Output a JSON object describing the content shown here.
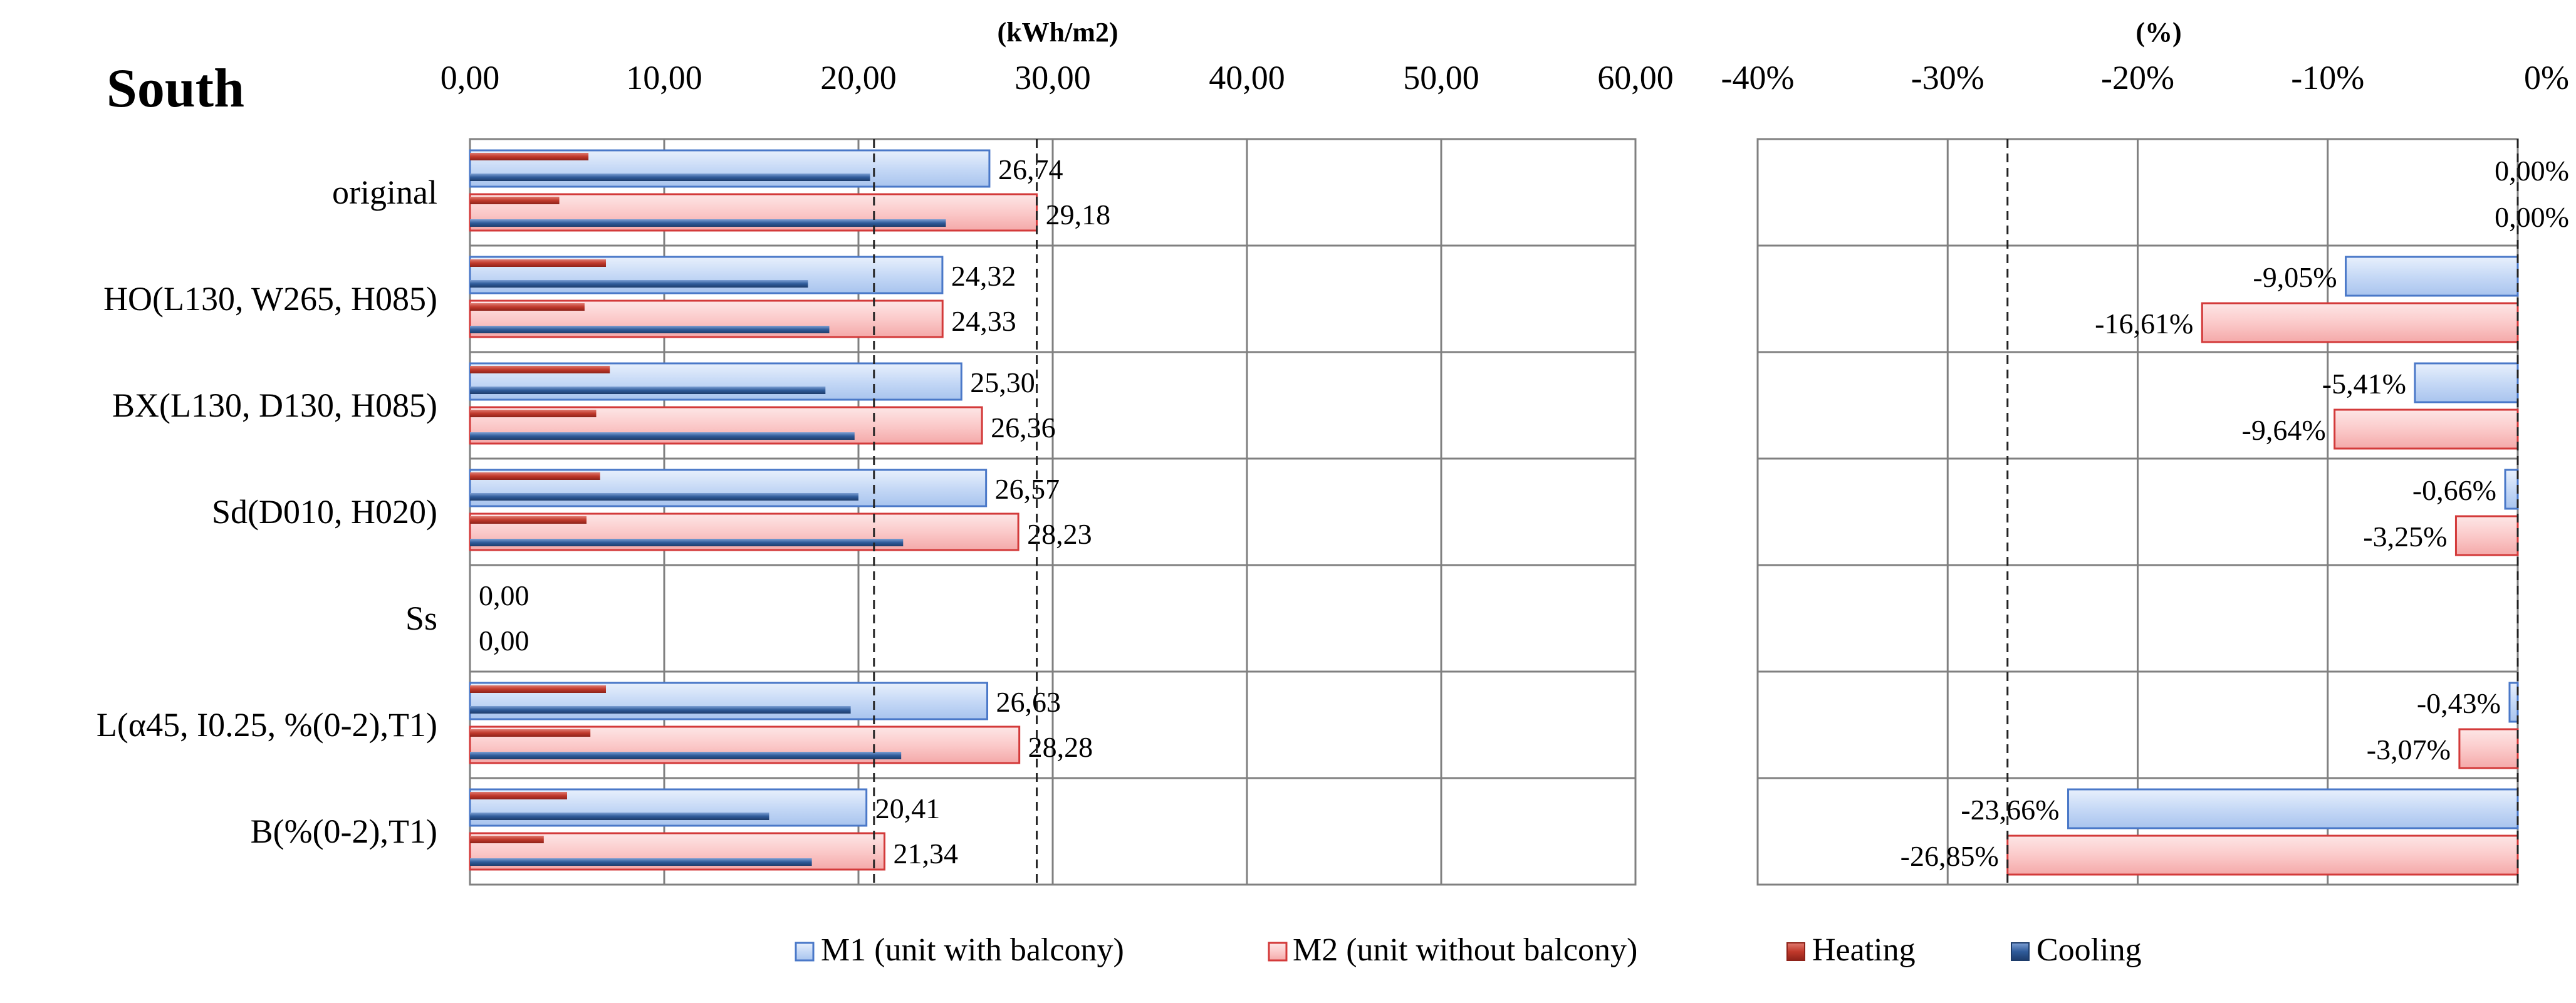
{
  "chart_data": [
    {
      "type": "bar",
      "title": "South",
      "unit_label": "(kWh/m2)",
      "xlim": [
        0,
        60
      ],
      "xticks": [
        "0,00",
        "10,00",
        "20,00",
        "30,00",
        "40,00",
        "50,00",
        "60,00"
      ],
      "grid": true,
      "categories": [
        "original",
        "HO(L130, W265, H085)",
        "BX(L130, D130, H085)",
        "Sd(D010, H020)",
        "Ss",
        "L(α45, I0.25, %(0-2),T1)",
        "B(%(0-2),T1)"
      ],
      "series": [
        {
          "name": "M1 (unit with balcony)",
          "values": [
            26.74,
            24.32,
            25.3,
            26.57,
            0.0,
            26.63,
            20.41
          ],
          "labels": [
            "26,74",
            "24,32",
            "25,30",
            "26,57",
            "0,00",
            "26,63",
            "20,41"
          ]
        },
        {
          "name": "M2 (unit without balcony)",
          "values": [
            29.18,
            24.33,
            26.36,
            28.23,
            0.0,
            28.28,
            21.34
          ],
          "labels": [
            "29,18",
            "24,33",
            "26,36",
            "28,23",
            "0,00",
            "28,28",
            "21,34"
          ]
        },
        {
          "name": "Heating M1",
          "values": [
            6.1,
            7.0,
            7.2,
            6.7,
            0,
            7.0,
            5.0
          ]
        },
        {
          "name": "Cooling M1",
          "values": [
            20.6,
            17.4,
            18.3,
            20.0,
            0,
            19.6,
            15.4
          ]
        },
        {
          "name": "Heating M2",
          "values": [
            4.6,
            5.9,
            6.5,
            6.0,
            0,
            6.2,
            3.8
          ]
        },
        {
          "name": "Cooling M2",
          "values": [
            24.5,
            18.5,
            19.8,
            22.3,
            0,
            22.2,
            17.6
          ]
        }
      ],
      "reference_lines": [
        20.8,
        29.18
      ]
    },
    {
      "type": "bar",
      "unit_label": "(%)",
      "xlim": [
        -40,
        0
      ],
      "xticks": [
        "-40%",
        "-30%",
        "-20%",
        "-10%",
        "0%"
      ],
      "grid": true,
      "series": [
        {
          "name": "M1 (unit with balcony)",
          "values": [
            0.0,
            -9.05,
            -5.41,
            -0.66,
            null,
            -0.43,
            -23.66
          ],
          "labels": [
            "0,00%",
            "-9,05%",
            "-5,41%",
            "-0,66%",
            "",
            "-0,43%",
            "-23,66%"
          ]
        },
        {
          "name": "M2 (unit without balcony)",
          "values": [
            0.0,
            -16.61,
            -9.64,
            -3.25,
            null,
            -3.07,
            -26.85
          ],
          "labels": [
            "0,00%",
            "-16,61%",
            "-9,64%",
            "-3,25%",
            "",
            "-3,07%",
            "-26,85%"
          ]
        }
      ],
      "reference_lines": [
        -26.85,
        0
      ]
    }
  ],
  "legend": {
    "items": [
      {
        "name": "M1 (unit with balcony)"
      },
      {
        "name": "M2 (unit without balcony)"
      },
      {
        "name": "Heating"
      },
      {
        "name": "Cooling"
      }
    ]
  },
  "colors": {
    "m1_fill": "#c9dcf7",
    "m1_stroke": "#4a78c8",
    "m2_fill": "#fbd0d0",
    "m2_stroke": "#d33a3a",
    "heating": "#c0392b",
    "cooling": "#2f5b9a",
    "grid": "#808080"
  }
}
